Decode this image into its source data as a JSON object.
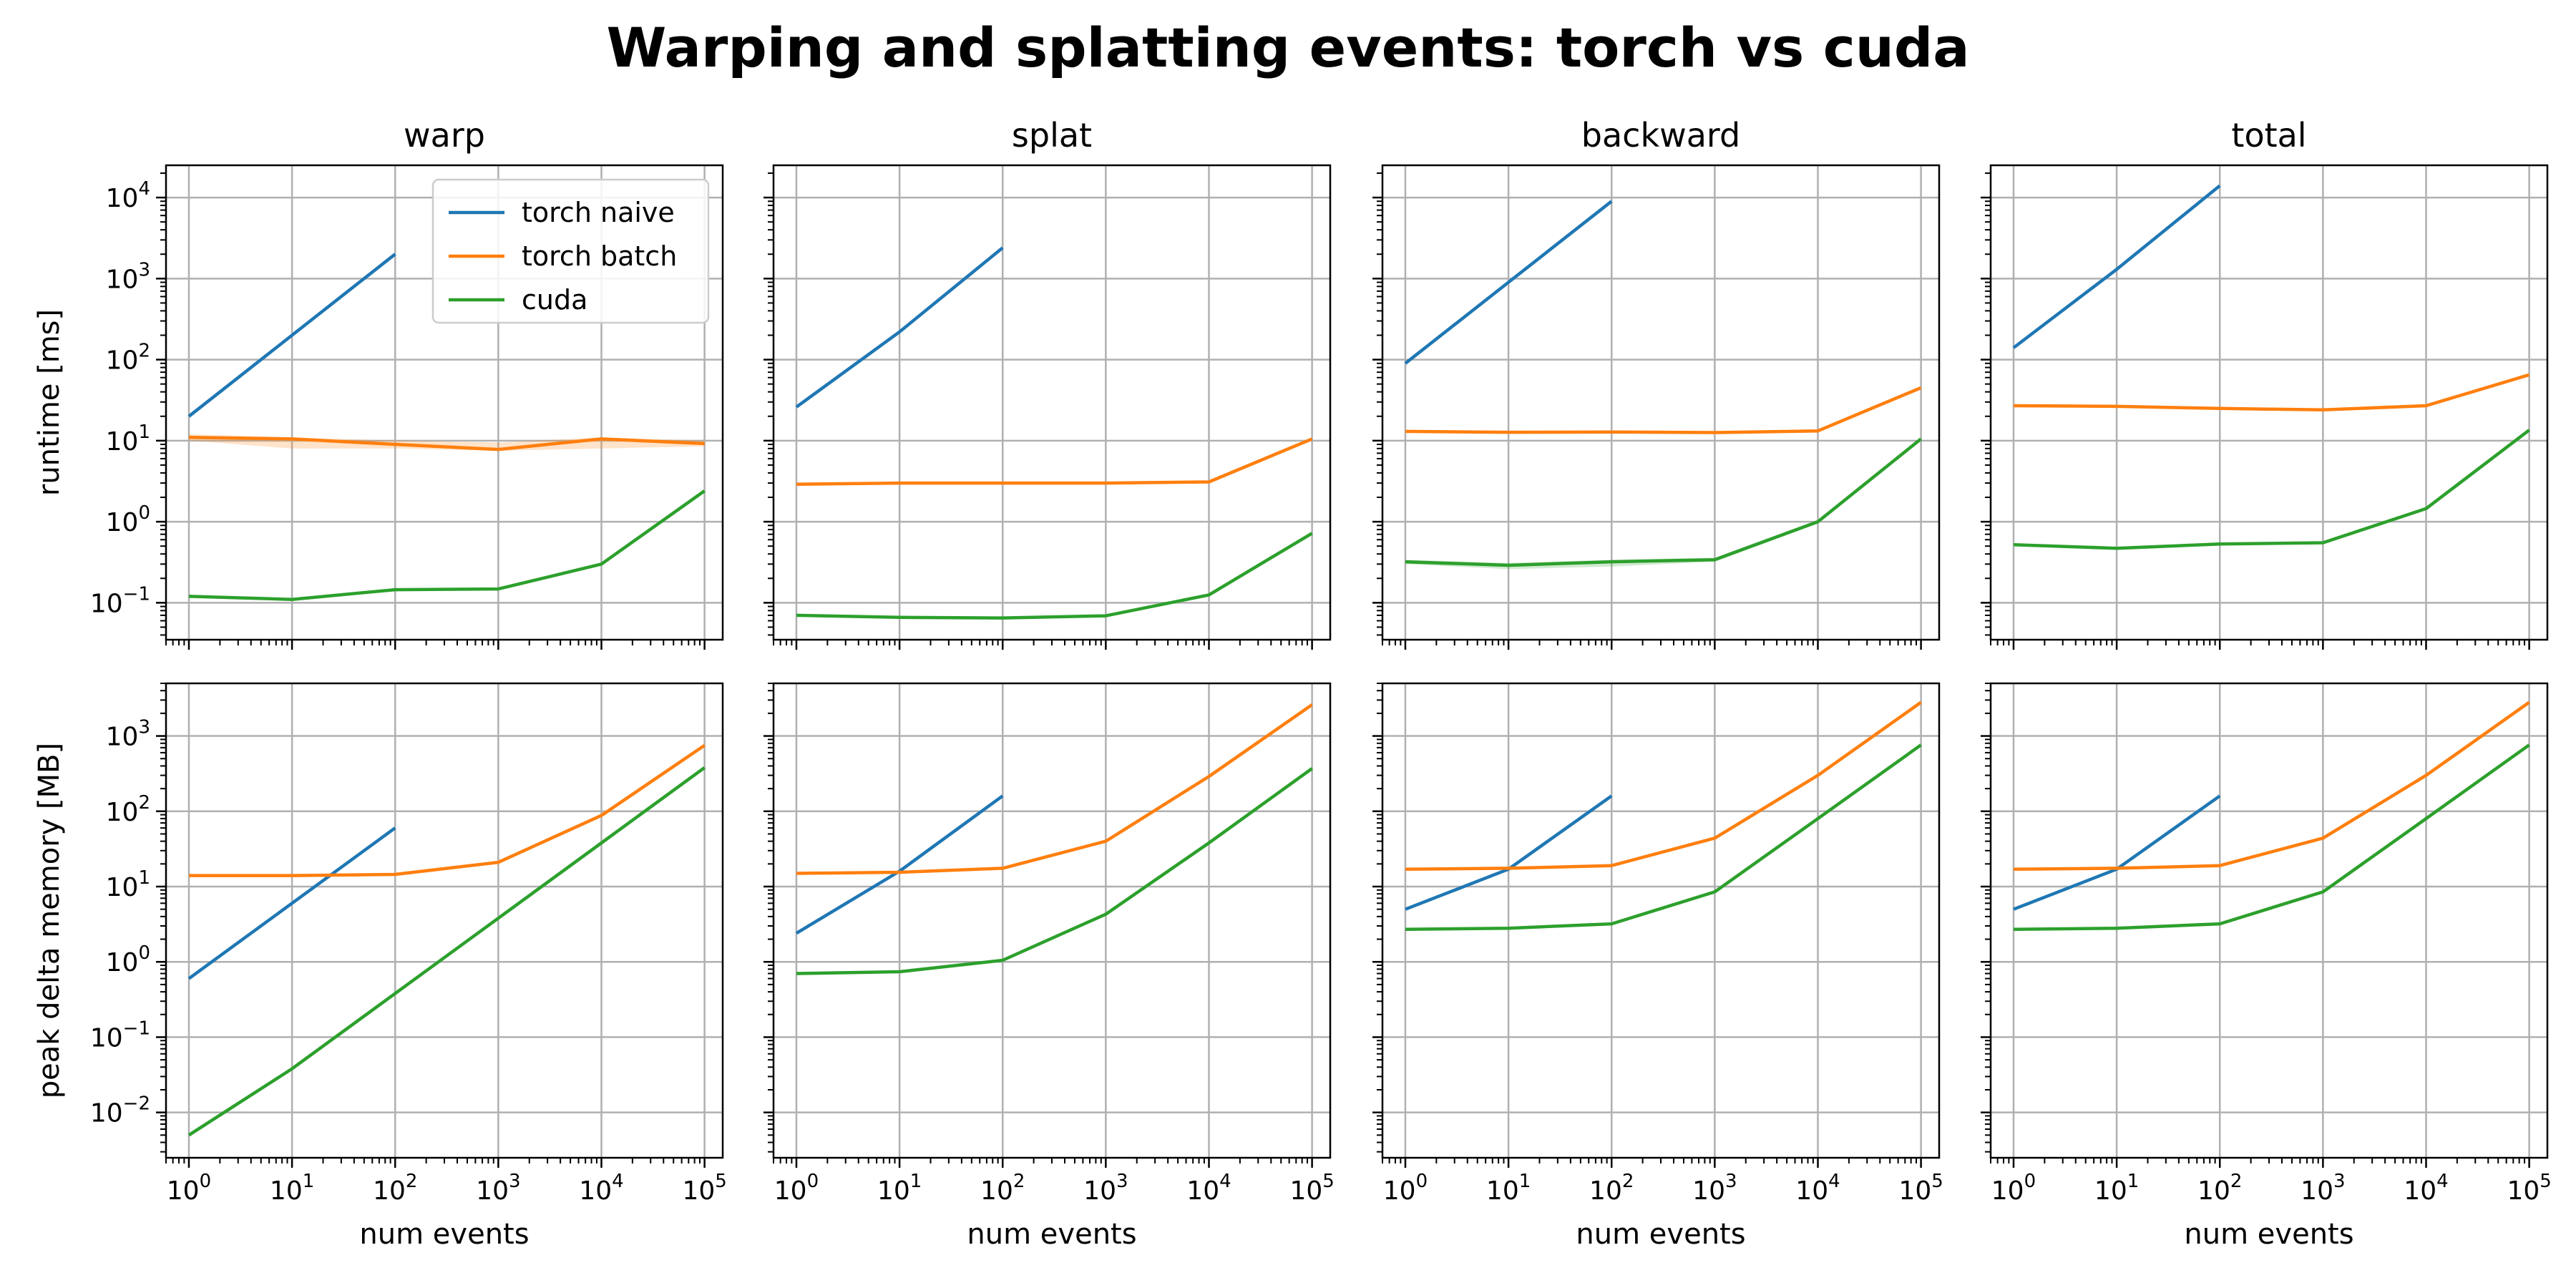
{
  "figure": {
    "title": "Warping and splatting events: torch vs cuda"
  },
  "colors": {
    "torch_naive": "#1f77b4",
    "torch_batch": "#ff7f0e",
    "cuda": "#2ca02c",
    "grid": "#b0b0b0"
  },
  "chart_data": [
    {
      "type": "line",
      "title": "warp",
      "xlabel": "",
      "ylabel": "runtime [ms]",
      "xscale": "log",
      "yscale": "log",
      "xlim": [
        0.6,
        150000
      ],
      "ylim": [
        0.035,
        25000
      ],
      "grid": true,
      "legend": "top-right",
      "series": [
        {
          "name": "torch naive",
          "x": [
            1,
            10,
            100
          ],
          "y": [
            20,
            200,
            2000
          ]
        },
        {
          "name": "torch batch",
          "x": [
            1,
            10,
            100,
            1000,
            10000,
            100000
          ],
          "y": [
            11,
            10.5,
            9,
            7.8,
            10.5,
            9.2
          ],
          "band": [
            [
              10,
              12
            ],
            [
              8,
              11
            ],
            [
              8,
              10
            ],
            [
              7.5,
              9.5
            ],
            [
              8,
              11
            ],
            [
              8.5,
              10
            ]
          ]
        },
        {
          "name": "cuda",
          "x": [
            1,
            10,
            100,
            1000,
            10000,
            100000
          ],
          "y": [
            0.12,
            0.11,
            0.145,
            0.148,
            0.3,
            2.4
          ]
        }
      ]
    },
    {
      "type": "line",
      "title": "splat",
      "xlabel": "",
      "ylabel": "",
      "xscale": "log",
      "yscale": "log",
      "xlim": [
        0.6,
        150000
      ],
      "ylim": [
        0.035,
        25000
      ],
      "grid": true,
      "series": [
        {
          "name": "torch naive",
          "x": [
            1,
            10,
            100
          ],
          "y": [
            26,
            220,
            2400
          ]
        },
        {
          "name": "torch batch",
          "x": [
            1,
            10,
            100,
            1000,
            10000,
            100000
          ],
          "y": [
            2.9,
            3.0,
            3.0,
            3.0,
            3.1,
            10.5
          ]
        },
        {
          "name": "cuda",
          "x": [
            1,
            10,
            100,
            1000,
            10000,
            100000
          ],
          "y": [
            0.07,
            0.066,
            0.065,
            0.069,
            0.125,
            0.72
          ]
        }
      ]
    },
    {
      "type": "line",
      "title": "backward",
      "xlabel": "",
      "ylabel": "",
      "xscale": "log",
      "yscale": "log",
      "xlim": [
        0.6,
        150000
      ],
      "ylim": [
        0.035,
        25000
      ],
      "grid": true,
      "series": [
        {
          "name": "torch naive",
          "x": [
            1,
            10,
            100
          ],
          "y": [
            90,
            900,
            9000
          ]
        },
        {
          "name": "torch batch",
          "x": [
            1,
            10,
            100,
            1000,
            10000,
            100000
          ],
          "y": [
            13,
            12.7,
            12.8,
            12.6,
            13.2,
            45
          ]
        },
        {
          "name": "cuda",
          "x": [
            1,
            10,
            100,
            1000,
            10000,
            100000
          ],
          "y": [
            0.32,
            0.29,
            0.32,
            0.34,
            1.0,
            10.5
          ],
          "band": [
            [
              0.3,
              0.34
            ],
            [
              0.26,
              0.31
            ],
            [
              0.28,
              0.34
            ],
            [
              0.32,
              0.36
            ],
            [
              0.95,
              1.05
            ],
            [
              10,
              11
            ]
          ]
        }
      ]
    },
    {
      "type": "line",
      "title": "total",
      "xlabel": "",
      "ylabel": "",
      "xscale": "log",
      "yscale": "log",
      "xlim": [
        0.6,
        150000
      ],
      "ylim": [
        0.035,
        25000
      ],
      "grid": true,
      "series": [
        {
          "name": "torch naive",
          "x": [
            1,
            10,
            100
          ],
          "y": [
            140,
            1300,
            14000
          ]
        },
        {
          "name": "torch batch",
          "x": [
            1,
            10,
            100,
            1000,
            10000,
            100000
          ],
          "y": [
            27,
            26.5,
            25,
            24,
            27,
            65
          ]
        },
        {
          "name": "cuda",
          "x": [
            1,
            10,
            100,
            1000,
            10000,
            100000
          ],
          "y": [
            0.52,
            0.47,
            0.53,
            0.55,
            1.45,
            13.5
          ]
        }
      ]
    },
    {
      "type": "line",
      "title": "",
      "xlabel": "num events",
      "ylabel": "peak delta memory [MB]",
      "xscale": "log",
      "yscale": "log",
      "xlim": [
        0.6,
        150000
      ],
      "ylim": [
        0.0025,
        5000
      ],
      "grid": true,
      "series": [
        {
          "name": "torch naive",
          "x": [
            1,
            10,
            100
          ],
          "y": [
            0.6,
            6,
            60
          ]
        },
        {
          "name": "torch batch",
          "x": [
            1,
            10,
            100,
            1000,
            10000,
            100000
          ],
          "y": [
            14,
            14,
            14.5,
            21,
            88,
            750
          ]
        },
        {
          "name": "cuda",
          "x": [
            1,
            10,
            100,
            1000,
            10000,
            100000
          ],
          "y": [
            0.005,
            0.038,
            0.38,
            3.8,
            38,
            380
          ]
        }
      ]
    },
    {
      "type": "line",
      "title": "",
      "xlabel": "num events",
      "ylabel": "",
      "xscale": "log",
      "yscale": "log",
      "xlim": [
        0.6,
        150000
      ],
      "ylim": [
        0.0025,
        5000
      ],
      "grid": true,
      "series": [
        {
          "name": "torch naive",
          "x": [
            1,
            10,
            100
          ],
          "y": [
            2.4,
            16,
            160
          ]
        },
        {
          "name": "torch batch",
          "x": [
            1,
            10,
            100,
            1000,
            10000,
            100000
          ],
          "y": [
            15,
            15.5,
            17.5,
            40,
            290,
            2600
          ]
        },
        {
          "name": "cuda",
          "x": [
            1,
            10,
            100,
            1000,
            10000,
            100000
          ],
          "y": [
            0.7,
            0.74,
            1.05,
            4.3,
            38,
            370
          ]
        }
      ]
    },
    {
      "type": "line",
      "title": "",
      "xlabel": "num events",
      "ylabel": "",
      "xscale": "log",
      "yscale": "log",
      "xlim": [
        0.6,
        150000
      ],
      "ylim": [
        0.0025,
        5000
      ],
      "grid": true,
      "series": [
        {
          "name": "torch naive",
          "x": [
            1,
            10,
            100
          ],
          "y": [
            5,
            17,
            160
          ]
        },
        {
          "name": "torch batch",
          "x": [
            1,
            10,
            100,
            1000,
            10000,
            100000
          ],
          "y": [
            17,
            17.5,
            19,
            44,
            300,
            2800
          ]
        },
        {
          "name": "cuda",
          "x": [
            1,
            10,
            100,
            1000,
            10000,
            100000
          ],
          "y": [
            2.7,
            2.8,
            3.2,
            8.5,
            80,
            760
          ]
        }
      ]
    },
    {
      "type": "line",
      "title": "",
      "xlabel": "num events",
      "ylabel": "",
      "xscale": "log",
      "yscale": "log",
      "xlim": [
        0.6,
        150000
      ],
      "ylim": [
        0.0025,
        5000
      ],
      "grid": true,
      "series": [
        {
          "name": "torch naive",
          "x": [
            1,
            10,
            100
          ],
          "y": [
            5,
            17,
            160
          ]
        },
        {
          "name": "torch batch",
          "x": [
            1,
            10,
            100,
            1000,
            10000,
            100000
          ],
          "y": [
            17,
            17.5,
            19,
            44,
            300,
            2800
          ]
        },
        {
          "name": "cuda",
          "x": [
            1,
            10,
            100,
            1000,
            10000,
            100000
          ],
          "y": [
            2.7,
            2.8,
            3.2,
            8.5,
            80,
            760
          ]
        }
      ]
    }
  ]
}
